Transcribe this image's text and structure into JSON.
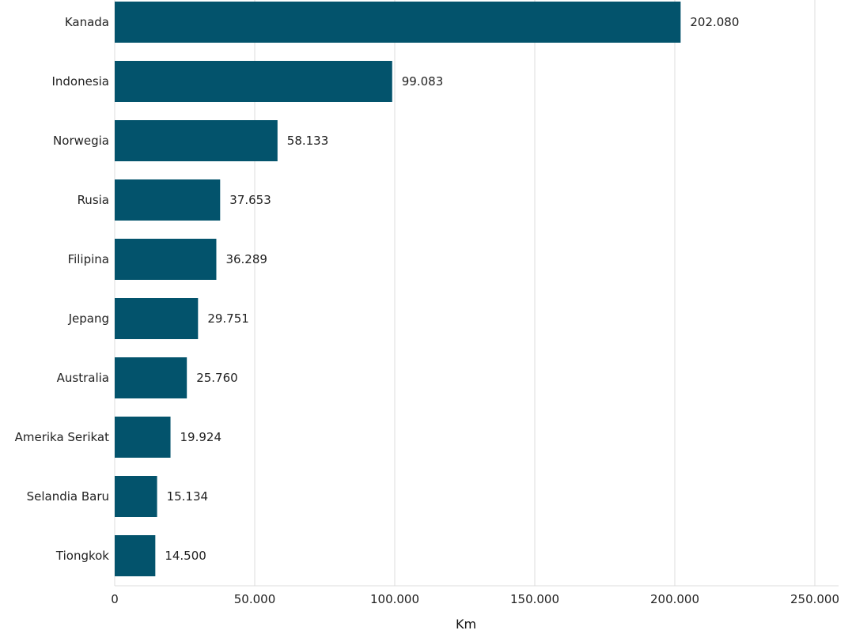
{
  "chart_data": {
    "type": "bar",
    "orientation": "horizontal",
    "title": "",
    "xlabel": "Km",
    "ylabel": "",
    "categories": [
      "Kanada",
      "Indonesia",
      "Norwegia",
      "Rusia",
      "Filipina",
      "Jepang",
      "Australia",
      "Amerika Serikat",
      "Selandia Baru",
      "Tiongkok"
    ],
    "values": [
      202080,
      99083,
      58133,
      37653,
      36289,
      29751,
      25760,
      19924,
      15134,
      14500
    ],
    "value_labels": [
      "202.080",
      "99.083",
      "58.133",
      "37.653",
      "36.289",
      "29.751",
      "25.760",
      "19.924",
      "15.134",
      "14.500"
    ],
    "xlim": [
      0,
      250000
    ],
    "xticks": [
      0,
      50000,
      100000,
      150000,
      200000,
      250000
    ],
    "xtick_labels": [
      "0",
      "50.000",
      "100.000",
      "150.000",
      "200.000",
      "250.000"
    ],
    "grid": true,
    "bar_color": "#03536c"
  }
}
